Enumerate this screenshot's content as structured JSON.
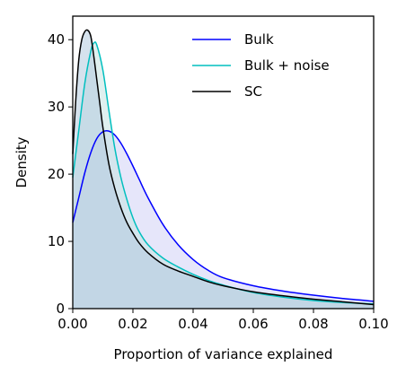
{
  "chart_data": {
    "type": "area",
    "xlabel": "Proportion of variance explained",
    "ylabel": "Density",
    "xlim": [
      0.0,
      0.1
    ],
    "ylim": [
      0,
      43.5
    ],
    "x_ticks": [
      0.0,
      0.02,
      0.04,
      0.06,
      0.08,
      0.1
    ],
    "x_tick_labels": [
      "0.00",
      "0.02",
      "0.04",
      "0.06",
      "0.08",
      "0.10"
    ],
    "y_ticks": [
      0,
      10,
      20,
      30,
      40
    ],
    "y_tick_labels": [
      "0",
      "10",
      "20",
      "30",
      "40"
    ],
    "grid": false,
    "legend_position": "top-right",
    "series": [
      {
        "name": "Bulk",
        "color": "#0000ff",
        "fill": "#d2d2f5",
        "x": [
          0.0,
          0.002,
          0.004,
          0.006,
          0.008,
          0.01,
          0.012,
          0.014,
          0.016,
          0.018,
          0.02,
          0.022,
          0.025,
          0.03,
          0.035,
          0.04,
          0.045,
          0.05,
          0.06,
          0.07,
          0.08,
          0.09,
          0.1
        ],
        "y": [
          12.8,
          16.5,
          20.2,
          23.2,
          25.3,
          26.3,
          26.4,
          25.8,
          24.6,
          23.0,
          21.2,
          19.3,
          16.5,
          12.5,
          9.5,
          7.3,
          5.7,
          4.6,
          3.4,
          2.6,
          2.0,
          1.5,
          1.1
        ]
      },
      {
        "name": "Bulk + noise",
        "color": "#00bfbf",
        "fill": "#c5e3e1",
        "x": [
          0.0,
          0.002,
          0.004,
          0.006,
          0.007,
          0.008,
          0.01,
          0.012,
          0.014,
          0.016,
          0.018,
          0.02,
          0.022,
          0.025,
          0.03,
          0.035,
          0.04,
          0.045,
          0.05,
          0.06,
          0.07,
          0.08,
          0.09,
          0.1
        ],
        "y": [
          19.5,
          26.5,
          33.5,
          38.3,
          39.5,
          39.2,
          35.5,
          29.5,
          23.8,
          19.5,
          16.2,
          13.5,
          11.5,
          9.5,
          7.5,
          6.2,
          5.1,
          4.2,
          3.5,
          2.4,
          1.7,
          1.2,
          0.9,
          0.7
        ]
      },
      {
        "name": "SC",
        "color": "#000000",
        "fill": "#b3cadf",
        "x": [
          0.0,
          0.001,
          0.002,
          0.003,
          0.004,
          0.005,
          0.006,
          0.007,
          0.008,
          0.009,
          0.01,
          0.012,
          0.014,
          0.016,
          0.018,
          0.02,
          0.022,
          0.025,
          0.03,
          0.035,
          0.04,
          0.045,
          0.05,
          0.06,
          0.07,
          0.08,
          0.09,
          0.1
        ],
        "y": [
          23.0,
          31.0,
          37.0,
          40.0,
          41.2,
          41.4,
          40.5,
          37.5,
          34.0,
          30.5,
          27.0,
          21.5,
          17.8,
          15.0,
          12.8,
          11.2,
          9.8,
          8.3,
          6.6,
          5.6,
          4.8,
          4.0,
          3.4,
          2.5,
          1.9,
          1.4,
          1.0,
          0.6
        ]
      }
    ]
  }
}
